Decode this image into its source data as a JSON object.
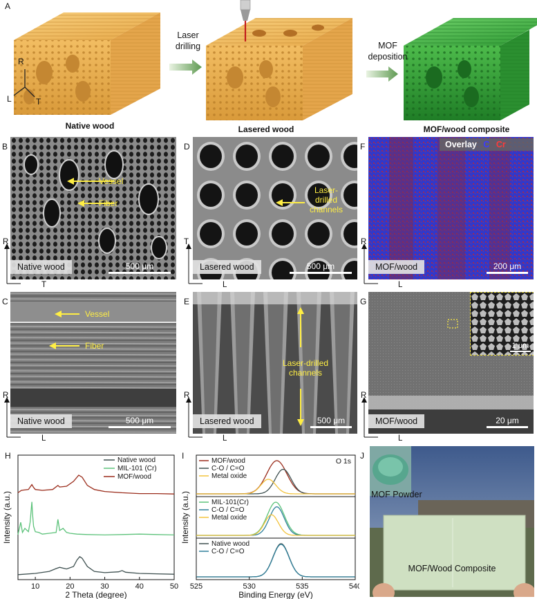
{
  "panels": {
    "A": "A",
    "B": "B",
    "C": "C",
    "D": "D",
    "E": "E",
    "F": "F",
    "G": "G",
    "H": "H",
    "I": "I",
    "J": "J"
  },
  "schematic": {
    "step1": "Laser drilling",
    "step2": "MOF deposition",
    "axis_r": "R",
    "axis_l": "L",
    "axis_t": "T",
    "caption_native": "Native wood",
    "caption_lasered": "Lasered wood",
    "caption_mof": "MOF/wood composite"
  },
  "sem": {
    "B": {
      "tag": "Native wood",
      "scale": "500 μm",
      "ann1": "Vessel",
      "ann2": "Fiber",
      "ax_v": "R",
      "ax_h": "T"
    },
    "C": {
      "tag": "Native wood",
      "scale": "500 μm",
      "ann1": "Vessel",
      "ann2": "Fiber",
      "ax_v": "R",
      "ax_h": "L"
    },
    "D": {
      "tag": "Lasered wood",
      "scale": "500 μm",
      "ann1": "Laser-drilled channels",
      "ax_v": "T",
      "ax_h": "L"
    },
    "E": {
      "tag": "Lasered wood",
      "scale": "500 μm",
      "ann1": "Laser-drilled channels",
      "ax_v": "R",
      "ax_h": "L"
    },
    "F": {
      "tag": "MOF/wood",
      "scale": "200 μm",
      "overlay": "Overlay",
      "c": "C",
      "cr": "Cr",
      "ax_v": "R",
      "ax_h": "L"
    },
    "G": {
      "tag": "MOF/wood",
      "scale": "20 μm",
      "inset_scale": "1 μm",
      "ax_v": "R",
      "ax_h": "L"
    }
  },
  "photo": {
    "label_powder": "MOF Powder",
    "label_composite": "MOF/Wood Composite"
  },
  "colors": {
    "wood": "#f0b95a",
    "mof": "#3fae3f",
    "native": "#3d4f4f",
    "mil": "#5cc27a",
    "mofwood": "#9a2b1a",
    "co": "#2e7f9a",
    "metal": "#f2c23a"
  },
  "chart_data": [
    {
      "type": "line",
      "title": "",
      "xlabel": "2 Theta (degree)",
      "ylabel": "Intensity (a.u.)",
      "xlim": [
        5,
        50
      ],
      "xticks": [
        10,
        20,
        30,
        40,
        50
      ],
      "legend": "top-right",
      "series": [
        {
          "name": "Native wood",
          "offset": 0,
          "x": [
            5,
            10,
            14,
            16,
            17,
            19,
            21,
            22,
            22.8,
            23.5,
            25,
            27,
            30,
            34,
            35,
            36,
            40,
            45,
            50
          ],
          "y": [
            0.02,
            0.05,
            0.1,
            0.17,
            0.2,
            0.16,
            0.22,
            0.38,
            0.46,
            0.42,
            0.22,
            0.1,
            0.07,
            0.09,
            0.12,
            0.08,
            0.05,
            0.04,
            0.03
          ]
        },
        {
          "name": "MIL-101 (Cr)",
          "offset": 1,
          "x": [
            5,
            5.8,
            6.3,
            7,
            8,
            8.5,
            9,
            9.2,
            9.5,
            10,
            11,
            12,
            14,
            16,
            16.5,
            17,
            18,
            19,
            20,
            22,
            25,
            30,
            35,
            40,
            45,
            50
          ],
          "y": [
            0.05,
            0.35,
            0.1,
            0.2,
            0.12,
            0.35,
            0.85,
            0.55,
            0.25,
            0.12,
            0.1,
            0.06,
            0.08,
            0.1,
            0.42,
            0.15,
            0.2,
            0.1,
            0.08,
            0.06,
            0.05,
            0.04,
            0.05,
            0.06,
            0.05,
            0.04
          ]
        },
        {
          "name": "MOF/wood",
          "offset": 2,
          "x": [
            5,
            6,
            8,
            9,
            9.5,
            10,
            12,
            15,
            16.5,
            17,
            19,
            21,
            22.5,
            23.5,
            25,
            27,
            30,
            35,
            40,
            45,
            50
          ],
          "y": [
            0.12,
            0.18,
            0.2,
            0.32,
            0.25,
            0.2,
            0.18,
            0.2,
            0.3,
            0.26,
            0.28,
            0.4,
            0.55,
            0.5,
            0.3,
            0.2,
            0.15,
            0.12,
            0.1,
            0.1,
            0.09
          ]
        }
      ]
    },
    {
      "type": "line",
      "title": "O 1s",
      "xlabel": "Binding Energy (eV)",
      "ylabel": "Intensity (a.u.)",
      "xlim": [
        525,
        540
      ],
      "xticks": [
        525,
        530,
        535,
        540
      ],
      "groups": [
        {
          "legend": [
            "MOF/wood",
            "C-O / C=O",
            "Metal oxide"
          ],
          "series": [
            {
              "name": "MOF/wood",
              "center": 532.6,
              "width": 1.9,
              "amp": 1.0
            },
            {
              "name": "C-O / C=O",
              "center": 533.2,
              "width": 1.5,
              "amp": 0.74
            },
            {
              "name": "Metal oxide",
              "center": 531.8,
              "width": 1.4,
              "amp": 0.44
            }
          ]
        },
        {
          "legend": [
            "MIL-101(Cr)",
            "C-O / C=O",
            "Metal oxide"
          ],
          "series": [
            {
              "name": "MIL-101(Cr)",
              "center": 532.5,
              "width": 1.6,
              "amp": 1.0
            },
            {
              "name": "C-O / C=O",
              "center": 532.6,
              "width": 1.4,
              "amp": 0.86
            },
            {
              "name": "Metal oxide",
              "center": 532.1,
              "width": 1.3,
              "amp": 0.62
            }
          ]
        },
        {
          "legend": [
            "Native wood",
            "C-O / C=O"
          ],
          "series": [
            {
              "name": "Native wood",
              "center": 533.0,
              "width": 1.5,
              "amp": 1.0
            },
            {
              "name": "C-O / C=O",
              "center": 533.0,
              "width": 1.5,
              "amp": 0.98
            }
          ]
        }
      ]
    }
  ]
}
